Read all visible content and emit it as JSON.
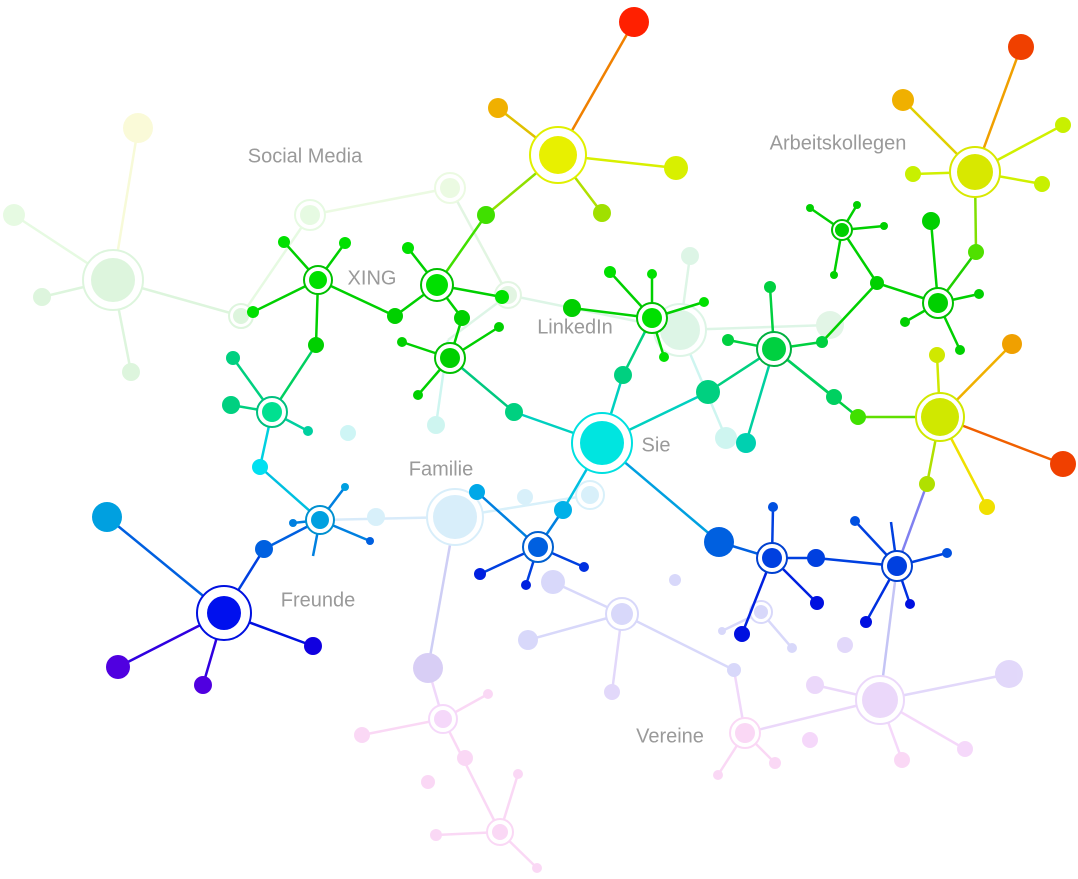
{
  "labels": {
    "social_media": "Social Media",
    "arbeitskollegen": "Arbeitskollegen",
    "xing": "XING",
    "linkedin": "LinkedIn",
    "sie": "Sie",
    "familie": "Familie",
    "freunde": "Freunde",
    "vereine": "Vereine"
  }
}
